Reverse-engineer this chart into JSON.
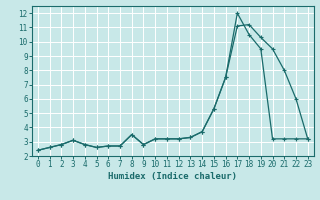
{
  "xlabel": "Humidex (Indice chaleur)",
  "background_color": "#c8e8e8",
  "grid_color": "#ffffff",
  "line_color": "#1a6b6b",
  "xlim_min": -0.5,
  "xlim_max": 23.5,
  "ylim_min": 2.0,
  "ylim_max": 12.5,
  "x": [
    0,
    1,
    2,
    3,
    4,
    5,
    6,
    7,
    8,
    9,
    10,
    11,
    12,
    13,
    14,
    15,
    16,
    17,
    18,
    19,
    20,
    21,
    22,
    23
  ],
  "line1": [
    2.4,
    2.6,
    2.8,
    3.1,
    2.8,
    2.6,
    2.7,
    2.7,
    3.5,
    2.8,
    3.2,
    3.2,
    3.2,
    3.3,
    3.7,
    5.3,
    7.5,
    11.1,
    11.2,
    10.3,
    9.5,
    8.0,
    6.0,
    3.2
  ],
  "line2": [
    2.4,
    2.6,
    2.8,
    3.1,
    2.8,
    2.6,
    2.7,
    2.7,
    3.5,
    2.8,
    3.2,
    3.2,
    3.2,
    3.3,
    3.7,
    5.3,
    7.5,
    12.0,
    10.5,
    9.5,
    3.2,
    3.2,
    3.2,
    3.2
  ],
  "yticks": [
    2,
    3,
    4,
    5,
    6,
    7,
    8,
    9,
    10,
    11,
    12
  ],
  "xticks": [
    0,
    1,
    2,
    3,
    4,
    5,
    6,
    7,
    8,
    9,
    10,
    11,
    12,
    13,
    14,
    15,
    16,
    17,
    18,
    19,
    20,
    21,
    22,
    23
  ],
  "tick_fontsize": 5.5,
  "label_fontsize": 6.5,
  "linewidth": 0.9,
  "markersize": 3.0
}
